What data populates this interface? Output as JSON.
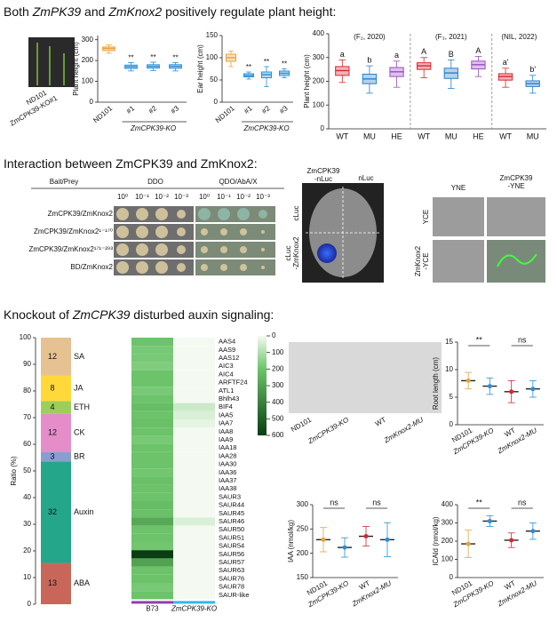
{
  "headings": [
    [
      "Both ",
      "ZmPK39",
      " and ",
      "ZmKnox2",
      " positively regulate plant height:"
    ],
    [
      "Interaction between ZmCPK39 and ZmKnox2:"
    ],
    [
      "Knockout of ",
      "ZmCPK39",
      " disturbed auxin signaling:"
    ]
  ],
  "plant_photo_labels": [
    "ND101",
    "ZmCPK39-KO#1"
  ],
  "yeast": {
    "header": [
      "Bait/Prey",
      "DDO",
      "QDO/AbA/X"
    ],
    "dilutions": [
      "10⁰",
      "10⁻¹",
      "10⁻²",
      "10⁻³"
    ],
    "rows": [
      "ZmCPK39/ZmKnox2",
      "ZmCPK39/ZmKnox2¹⁻¹⁷⁰",
      "ZmCPK39/ZmKnox2¹⁷¹⁻²⁹³",
      "BD/ZmKnox2"
    ]
  },
  "luciferase": {
    "columns": [
      [
        "ZmCPK39",
        "-nLuc"
      ],
      [
        "nLuc"
      ]
    ],
    "rows": [
      [
        "cLuc"
      ],
      [
        "cLuc",
        "-ZmKnox2"
      ]
    ]
  },
  "bifc": {
    "columns": [
      [
        "YNE"
      ],
      [
        "ZmCPK39",
        "-YNE"
      ]
    ],
    "rows": [
      [
        "YCE"
      ],
      [
        "ZmKnox2",
        "-YCE"
      ]
    ]
  },
  "root_photo_labels": [
    "ND101",
    "ZmCPK39-KO",
    "WT",
    "ZmKnox2-MU"
  ],
  "chart_data": [
    {
      "type": "box",
      "ylabel": "Plant height (cm)",
      "categories": [
        "ND101",
        "#1",
        "#2",
        "#3"
      ],
      "group_label": "ZmCPK39-KO",
      "boxes": [
        [
          235,
          248,
          258,
          265,
          275
        ],
        [
          150,
          162,
          170,
          178,
          190
        ],
        [
          152,
          164,
          172,
          180,
          192
        ],
        [
          150,
          163,
          172,
          180,
          190
        ]
      ],
      "annotations": [
        null,
        "**",
        "**",
        "**"
      ],
      "colors": [
        "#e8a33c",
        "#2b8fd6",
        "#2b8fd6",
        "#2b8fd6"
      ],
      "ylim": [
        0,
        320
      ],
      "yticks": [
        0,
        100,
        200,
        300
      ]
    },
    {
      "type": "box",
      "ylabel": "Ear height (cm)",
      "categories": [
        "ND101",
        "#1",
        "#2",
        "#3"
      ],
      "group_label": "ZmCPK39-KO",
      "boxes": [
        [
          80,
          92,
          100,
          108,
          115
        ],
        [
          52,
          57,
          60,
          64,
          68
        ],
        [
          35,
          55,
          62,
          68,
          80
        ],
        [
          55,
          60,
          65,
          70,
          75
        ]
      ],
      "annotations": [
        null,
        "**",
        "**",
        "**"
      ],
      "colors": [
        "#e8a33c",
        "#2b8fd6",
        "#2b8fd6",
        "#2b8fd6"
      ],
      "ylim": [
        0,
        150
      ],
      "yticks": [
        0,
        50,
        100,
        150
      ]
    },
    {
      "type": "grouped_box",
      "ylabel": "Plant height (cm)",
      "ylim": [
        0,
        400
      ],
      "yticks": [
        0,
        100,
        200,
        300,
        400
      ],
      "colors": [
        "#d9262f",
        "#2b7fc9",
        "#9b4fc4"
      ],
      "groups": [
        {
          "label": "(F₂, 2020)",
          "categories": [
            "WT",
            "MU",
            "HE"
          ],
          "annotations": [
            "a",
            "b",
            "a"
          ],
          "boxes": [
            [
              195,
              225,
              245,
              262,
              290
            ],
            [
              150,
              190,
              210,
              230,
              265
            ],
            [
              175,
              220,
              240,
              258,
              285
            ]
          ]
        },
        {
          "label": "(F₃, 2021)",
          "categories": [
            "WT",
            "MU",
            "HE"
          ],
          "annotations": [
            "A",
            "B",
            "A"
          ],
          "boxes": [
            [
              215,
              250,
              265,
              278,
              300
            ],
            [
              170,
              212,
              235,
              255,
              290
            ],
            [
              220,
              252,
              270,
              285,
              305
            ]
          ]
        },
        {
          "label": "(NIL, 2022)",
          "categories": [
            "WT",
            "MU"
          ],
          "annotations": [
            "a'",
            "b'"
          ],
          "boxes": [
            [
              175,
              205,
              220,
              232,
              255
            ],
            [
              150,
              178,
              190,
              202,
              225
            ]
          ]
        }
      ]
    },
    {
      "type": "stacked_bar",
      "ylabel": "Ratio (%)",
      "ylim": [
        0,
        100
      ],
      "yticks": [
        0,
        10,
        20,
        30,
        40,
        50,
        60,
        70,
        80,
        90,
        100
      ],
      "series": [
        {
          "name": "ABA",
          "value": 13,
          "color": "#c9665a"
        },
        {
          "name": "Auxin",
          "value": 32,
          "color": "#23a68a"
        },
        {
          "name": "BR",
          "value": 3,
          "color": "#8a9dd0"
        },
        {
          "name": "CK",
          "value": 12,
          "color": "#e48dc9"
        },
        {
          "name": "ETH",
          "value": 4,
          "color": "#9bcf5a"
        },
        {
          "name": "JA",
          "value": 8,
          "color": "#ffd93a"
        },
        {
          "name": "SA",
          "value": 12,
          "color": "#e6c192"
        }
      ]
    },
    {
      "type": "heatmap",
      "columns": [
        "B73",
        "ZmCPK39-KO"
      ],
      "column_colors": [
        "#8e3fa8",
        "#35b6e6"
      ],
      "rows": [
        "AAS4",
        "AAS9",
        "AAS12",
        "AIC3",
        "AIC4",
        "ARFTF24",
        "ATL1",
        "Bhlh43",
        "BIF4",
        "IAA5",
        "IAA7",
        "IAA8",
        "IAA9",
        "IAA18",
        "IAA28",
        "IAA30",
        "IAA36",
        "IAA37",
        "IAA38",
        "SAUR3",
        "SAUR44",
        "SAUR45",
        "SAUR46",
        "SAUR50",
        "SAUR51",
        "SAUR54",
        "SAUR56",
        "SAUR57",
        "SAUR63",
        "SAUR76",
        "SAUR78",
        "SAUR-like"
      ],
      "values": [
        [
          200,
          0
        ],
        [
          180,
          0
        ],
        [
          180,
          0
        ],
        [
          170,
          0
        ],
        [
          200,
          0
        ],
        [
          200,
          0
        ],
        [
          180,
          0
        ],
        [
          200,
          0
        ],
        [
          220,
          60
        ],
        [
          200,
          40
        ],
        [
          210,
          20
        ],
        [
          200,
          0
        ],
        [
          180,
          0
        ],
        [
          200,
          0
        ],
        [
          200,
          0
        ],
        [
          200,
          0
        ],
        [
          190,
          0
        ],
        [
          210,
          0
        ],
        [
          200,
          0
        ],
        [
          200,
          0
        ],
        [
          220,
          0
        ],
        [
          210,
          0
        ],
        [
          280,
          40
        ],
        [
          200,
          0
        ],
        [
          200,
          0
        ],
        [
          190,
          0
        ],
        [
          600,
          0
        ],
        [
          300,
          0
        ],
        [
          200,
          0
        ],
        [
          200,
          0
        ],
        [
          180,
          0
        ],
        [
          200,
          0
        ]
      ],
      "clim": [
        0,
        600
      ],
      "cticks": [
        0,
        100,
        200,
        300,
        400,
        500,
        600
      ]
    },
    {
      "type": "dot",
      "ylabel": "Root length (cm)",
      "categories": [
        "ND101",
        "ZmCPK39-KO",
        "WT",
        "ZmKnox2-MU"
      ],
      "values": [
        8,
        7,
        6,
        6.5
      ],
      "errors": [
        1.5,
        1.5,
        2,
        1.5
      ],
      "comparisons": [
        "**",
        "ns"
      ],
      "colors": [
        "#e8a33c",
        "#2b8fd6",
        "#d9262f",
        "#2b8fd6"
      ],
      "ylim": [
        0,
        15
      ],
      "yticks": [
        0,
        5,
        10,
        15
      ]
    },
    {
      "type": "dot",
      "ylabel": "IAA (nmol/kg)",
      "categories": [
        "ND101",
        "ZmCPK39-KO",
        "WT",
        "ZmKnox2-MU"
      ],
      "values": [
        228,
        212,
        235,
        228
      ],
      "errors": [
        25,
        20,
        20,
        35
      ],
      "comparisons": [
        "ns",
        "ns"
      ],
      "colors": [
        "#e8a33c",
        "#2b8fd6",
        "#d9262f",
        "#2b8fd6"
      ],
      "ylim": [
        150,
        300
      ],
      "yticks": [
        150,
        200,
        250,
        300
      ]
    },
    {
      "type": "dot",
      "ylabel": "ICAld (nmol/kg)",
      "categories": [
        "ND101",
        "ZmCPK39-KO",
        "WT",
        "ZmKnox2-MU"
      ],
      "values": [
        185,
        310,
        205,
        255
      ],
      "errors": [
        75,
        30,
        40,
        45
      ],
      "comparisons": [
        "**",
        "ns"
      ],
      "colors": [
        "#e8a33c",
        "#2b8fd6",
        "#d9262f",
        "#2b8fd6"
      ],
      "ylim": [
        0,
        400
      ],
      "yticks": [
        0,
        100,
        200,
        300,
        400
      ]
    }
  ]
}
